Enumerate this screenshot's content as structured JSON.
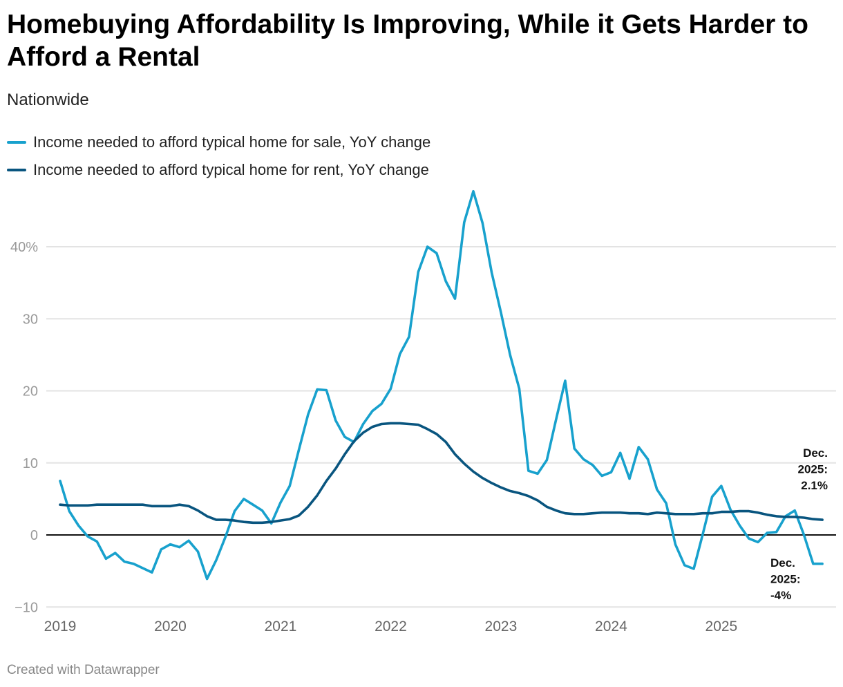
{
  "title": "Homebuying Affordability Is Improving, While it Gets Harder to Afford a Rental",
  "subtitle": "Nationwide",
  "footer": "Created with Datawrapper",
  "colors": {
    "sale": "#18a1cd",
    "rent": "#09557f"
  },
  "chart_data": {
    "type": "line",
    "x_start": "2019-01",
    "x_end": "2025-12",
    "frequency": "monthly",
    "x_ticks": [
      "2019",
      "2020",
      "2021",
      "2022",
      "2023",
      "2024",
      "2025"
    ],
    "y_ticks": [
      -10,
      0,
      10,
      20,
      30,
      "40%"
    ],
    "ylim": [
      -10,
      47.7
    ],
    "grid": true,
    "legend": "top-left",
    "series": [
      {
        "name": "Income needed to afford typical home for sale, YoY change",
        "color": "#18a1cd",
        "values": [
          7.5,
          3.3,
          1.3,
          -0.2,
          -0.9,
          -3.3,
          -2.5,
          -3.7,
          -4.0,
          -4.6,
          -5.2,
          -2.0,
          -1.3,
          -1.7,
          -0.8,
          -2.3,
          -6.1,
          -3.5,
          -0.3,
          3.3,
          5.0,
          4.2,
          3.4,
          1.6,
          4.5,
          6.8,
          11.8,
          16.7,
          20.2,
          20.1,
          15.9,
          13.6,
          12.9,
          15.4,
          17.2,
          18.2,
          20.3,
          25.1,
          27.5,
          36.5,
          40.0,
          39.1,
          35.2,
          32.8,
          43.4,
          47.7,
          43.3,
          36.4,
          30.9,
          25.0,
          20.3,
          8.9,
          8.5,
          10.4,
          16.0,
          21.4,
          12.0,
          10.5,
          9.7,
          8.2,
          8.7,
          11.4,
          7.8,
          12.2,
          10.5,
          6.3,
          4.4,
          -1.3,
          -4.2,
          -4.7,
          0.2,
          5.3,
          6.8,
          3.5,
          1.3,
          -0.5,
          -1.0,
          0.3,
          0.4,
          2.6,
          3.4,
          0.0,
          -4.0,
          -4.0
        ]
      },
      {
        "name": "Income needed to afford typical home for rent, YoY change",
        "color": "#09557f",
        "values": [
          4.2,
          4.1,
          4.1,
          4.1,
          4.2,
          4.2,
          4.2,
          4.2,
          4.2,
          4.2,
          4.0,
          4.0,
          4.0,
          4.2,
          4.0,
          3.4,
          2.6,
          2.1,
          2.1,
          2.0,
          1.8,
          1.7,
          1.7,
          1.8,
          2.0,
          2.2,
          2.7,
          3.9,
          5.5,
          7.5,
          9.2,
          11.2,
          13.0,
          14.2,
          15.0,
          15.4,
          15.5,
          15.5,
          15.4,
          15.3,
          14.7,
          14.0,
          12.9,
          11.2,
          9.9,
          8.8,
          7.9,
          7.2,
          6.6,
          6.1,
          5.8,
          5.4,
          4.8,
          3.9,
          3.4,
          3.0,
          2.9,
          2.9,
          3.0,
          3.1,
          3.1,
          3.1,
          3.0,
          3.0,
          2.9,
          3.1,
          3.0,
          2.9,
          2.9,
          2.9,
          3.0,
          3.0,
          3.2,
          3.2,
          3.3,
          3.3,
          3.1,
          2.8,
          2.6,
          2.5,
          2.5,
          2.4,
          2.2,
          2.1
        ]
      }
    ],
    "annotations": [
      {
        "lines": [
          "Dec.",
          "2025:",
          "2.1%"
        ],
        "series": "rent"
      },
      {
        "lines": [
          "Dec.",
          "2025:",
          "-4%"
        ],
        "series": "sale"
      }
    ]
  }
}
